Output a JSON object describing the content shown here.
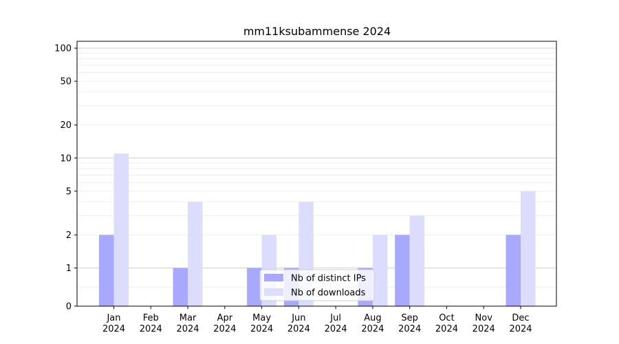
{
  "chart_data": {
    "type": "bar",
    "title": "mm11ksubammense 2024",
    "xlabel": "",
    "ylabel": "",
    "y_scale": "symlog",
    "y_ticks": [
      0,
      1,
      2,
      5,
      10,
      20,
      50,
      100
    ],
    "ylim": [
      0,
      120
    ],
    "grid": true,
    "legend_position": "lower-center",
    "categories": [
      [
        "Jan",
        "2024"
      ],
      [
        "Feb",
        "2024"
      ],
      [
        "Mar",
        "2024"
      ],
      [
        "Apr",
        "2024"
      ],
      [
        "May",
        "2024"
      ],
      [
        "Jun",
        "2024"
      ],
      [
        "Jul",
        "2024"
      ],
      [
        "Aug",
        "2024"
      ],
      [
        "Sep",
        "2024"
      ],
      [
        "Oct",
        "2024"
      ],
      [
        "Nov",
        "2024"
      ],
      [
        "Dec",
        "2024"
      ]
    ],
    "series": [
      {
        "name": "Nb of distinct IPs",
        "color": "#a8a8ff",
        "values": [
          2,
          0,
          1,
          0,
          1,
          1,
          0,
          1,
          2,
          0,
          0,
          2
        ]
      },
      {
        "name": "Nb of downloads",
        "color": "#dcdcff",
        "values": [
          11,
          0,
          4,
          0,
          2,
          4,
          0,
          2,
          3,
          0,
          0,
          5
        ]
      }
    ]
  }
}
